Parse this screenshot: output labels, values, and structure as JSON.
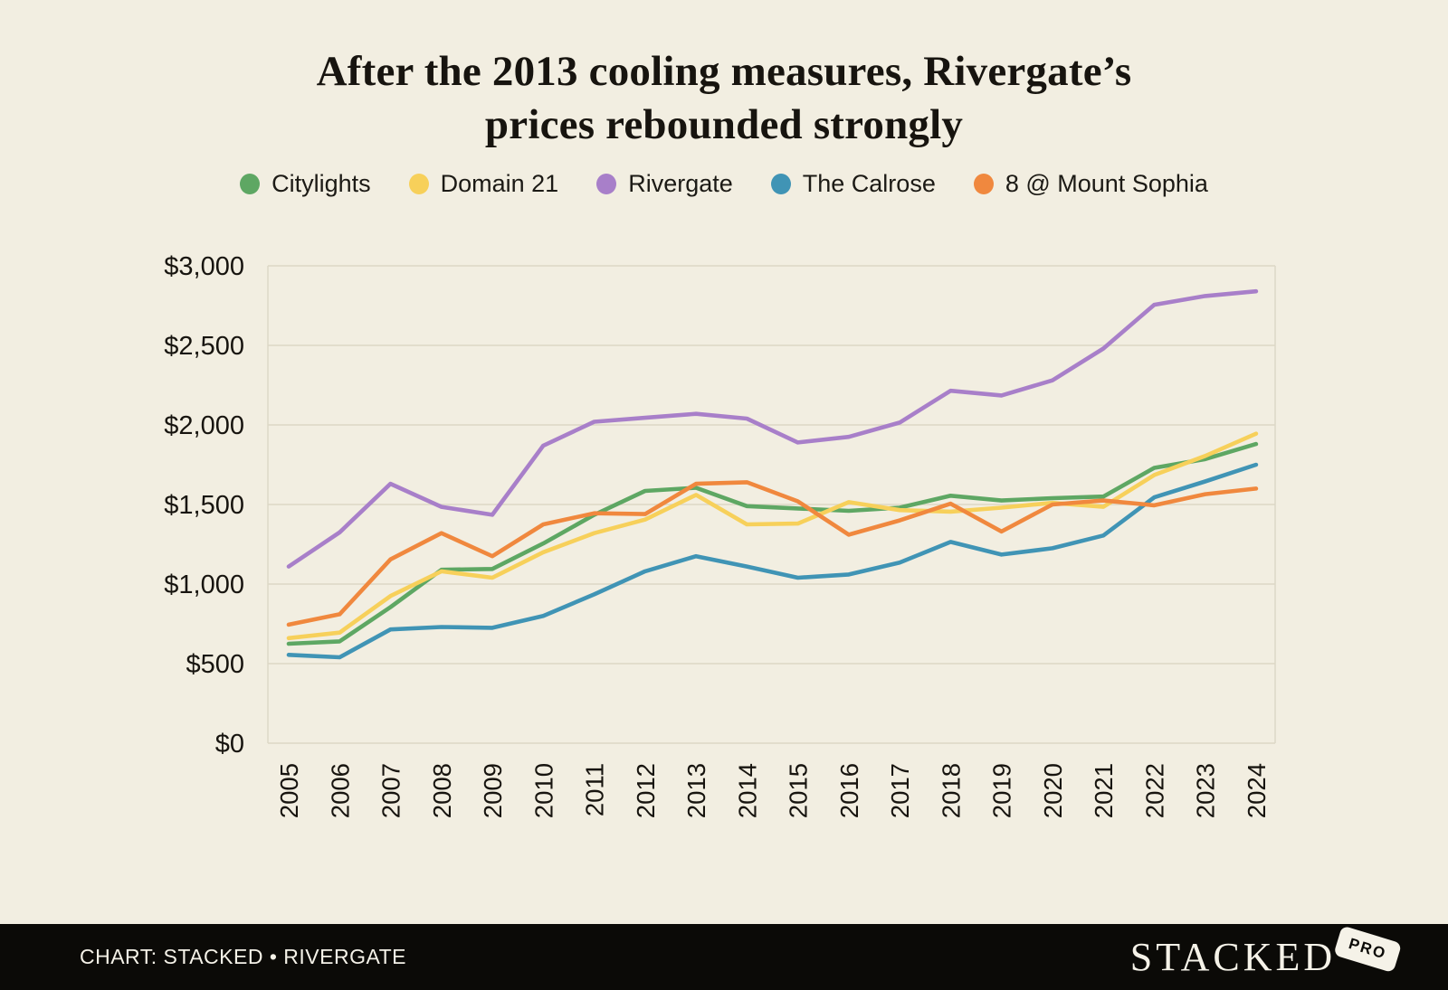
{
  "title": {
    "line1": "After the 2013 cooling measures, Rivergate’s",
    "line2": "prices rebounded strongly"
  },
  "footer": {
    "credit": "CHART: STACKED • RIVERGATE",
    "logo_word": "STACKED",
    "logo_badge": "PRO"
  },
  "colors": {
    "background": "#F2EEE1",
    "grid": "#DCD7C6",
    "text": "#17140F",
    "footer_bg": "#0B0A07"
  },
  "chart_data": {
    "type": "line",
    "title": "After the 2013 cooling measures, Rivergate’s prices rebounded strongly",
    "xlabel": "",
    "ylabel": "",
    "x": [
      2005,
      2006,
      2007,
      2008,
      2009,
      2010,
      2011,
      2012,
      2013,
      2014,
      2015,
      2016,
      2017,
      2018,
      2019,
      2020,
      2021,
      2022,
      2023,
      2024
    ],
    "ylim": [
      0,
      3000
    ],
    "ytick_step": 500,
    "ytick_labels": [
      "$0",
      "$500",
      "$1,000",
      "$1,500",
      "$2,000",
      "$2,500",
      "$3,000"
    ],
    "grid": "horizontal",
    "legend_position": "top",
    "series": [
      {
        "name": "Citylights",
        "color": "#5EA763",
        "values": [
          625,
          640,
          855,
          1090,
          1095,
          1255,
          1435,
          1585,
          1605,
          1490,
          1475,
          1460,
          1480,
          1555,
          1525,
          1540,
          1550,
          1730,
          1785,
          1880
        ]
      },
      {
        "name": "Domain 21",
        "color": "#F7D05A",
        "values": [
          660,
          695,
          925,
          1080,
          1040,
          1200,
          1320,
          1405,
          1560,
          1375,
          1380,
          1515,
          1465,
          1455,
          1480,
          1510,
          1485,
          1685,
          1805,
          1945
        ]
      },
      {
        "name": "Rivergate",
        "color": "#A87FC9",
        "values": [
          1110,
          1325,
          1630,
          1485,
          1435,
          1870,
          2020,
          2045,
          2070,
          2040,
          1890,
          1925,
          2015,
          2215,
          2185,
          2280,
          2480,
          2755,
          2810,
          2840
        ]
      },
      {
        "name": "The Calrose",
        "color": "#4094B5",
        "values": [
          555,
          540,
          715,
          730,
          725,
          800,
          935,
          1080,
          1175,
          1110,
          1040,
          1060,
          1135,
          1265,
          1185,
          1225,
          1305,
          1545,
          1645,
          1750
        ]
      },
      {
        "name": "8 @ Mount Sophia",
        "color": "#F0883E",
        "values": [
          745,
          810,
          1155,
          1320,
          1175,
          1375,
          1445,
          1440,
          1630,
          1640,
          1520,
          1310,
          1400,
          1505,
          1330,
          1500,
          1525,
          1495,
          1565,
          1600
        ]
      }
    ]
  }
}
